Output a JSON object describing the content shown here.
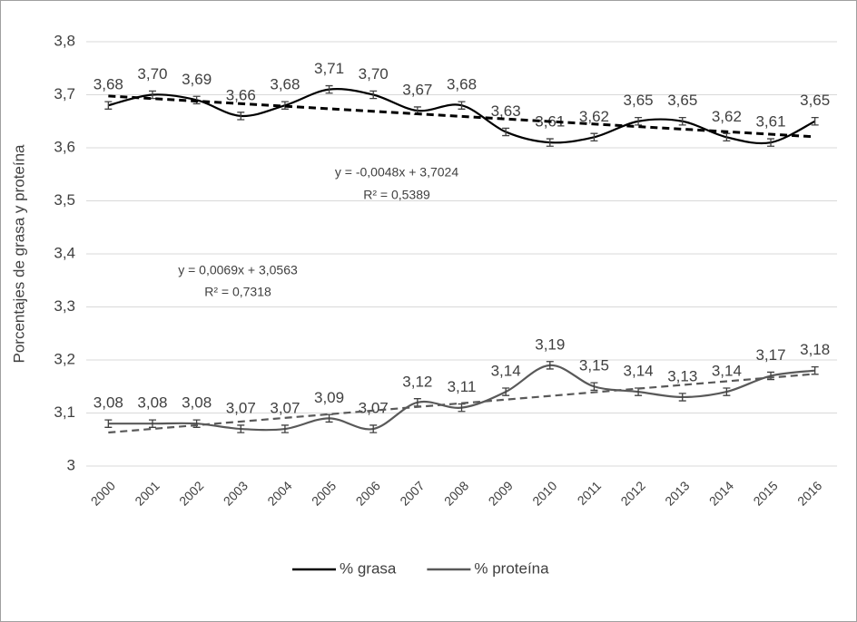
{
  "chart_data": {
    "type": "line",
    "y_label": "Porcentajes de grasa y proteína",
    "categories": [
      "2000",
      "2001",
      "2002",
      "2003",
      "2004",
      "2005",
      "2006",
      "2007",
      "2008",
      "2009",
      "2010",
      "2011",
      "2012",
      "2013",
      "2014",
      "2015",
      "2016"
    ],
    "ylim": [
      3,
      3.8
    ],
    "yticks": [
      3,
      {
        "value": 3.1,
        "label": "3,1"
      },
      {
        "value": 3.2,
        "label": "3,2"
      },
      {
        "value": 3.3,
        "label": "3,3"
      },
      {
        "value": 3.4,
        "label": "3,4"
      },
      {
        "value": 3.5,
        "label": "3,5"
      },
      {
        "value": 3.6,
        "label": "3,6"
      },
      {
        "value": 3.7,
        "label": "3,7"
      },
      {
        "value": 3.8,
        "label": "3,8"
      }
    ],
    "grid": true,
    "legend": "bottom",
    "series": [
      {
        "name": "% grasa",
        "color": "#000000",
        "error": 0.007,
        "values": [
          3.68,
          3.7,
          3.69,
          3.66,
          3.68,
          3.71,
          3.7,
          3.67,
          3.68,
          3.63,
          3.61,
          3.62,
          3.65,
          3.65,
          3.62,
          3.61,
          3.65
        ],
        "value_labels": [
          "3,68",
          "3,70",
          "3,69",
          "3,66",
          "3,68",
          "3,71",
          "3,70",
          "3,67",
          "3,68",
          "3,63",
          "3,61",
          "3,62",
          "3,65",
          "3,65",
          "3,62",
          "3,61",
          "3,65"
        ],
        "trendline": {
          "equation": "y = -0,0048x + 3,7024",
          "r2": "R² = 0,5389",
          "slope": -0.0048,
          "intercept": 3.7024
        }
      },
      {
        "name": "% proteína",
        "color": "#595959",
        "error": 0.007,
        "values": [
          3.08,
          3.08,
          3.08,
          3.07,
          3.07,
          3.09,
          3.07,
          3.12,
          3.11,
          3.14,
          3.19,
          3.15,
          3.14,
          3.13,
          3.14,
          3.17,
          3.18
        ],
        "value_labels": [
          "3,08",
          "3,08",
          "3,08",
          "3,07",
          "3,07",
          "3,09",
          "3,07",
          "3,12",
          "3,11",
          "3,14",
          "3,19",
          "3,15",
          "3,14",
          "3,13",
          "3,14",
          "3,17",
          "3,18"
        ],
        "trendline": {
          "equation": "y = 0,0069x + 3,0563",
          "r2": "R² = 0,7318",
          "slope": 0.0069,
          "intercept": 3.0563
        }
      }
    ]
  }
}
